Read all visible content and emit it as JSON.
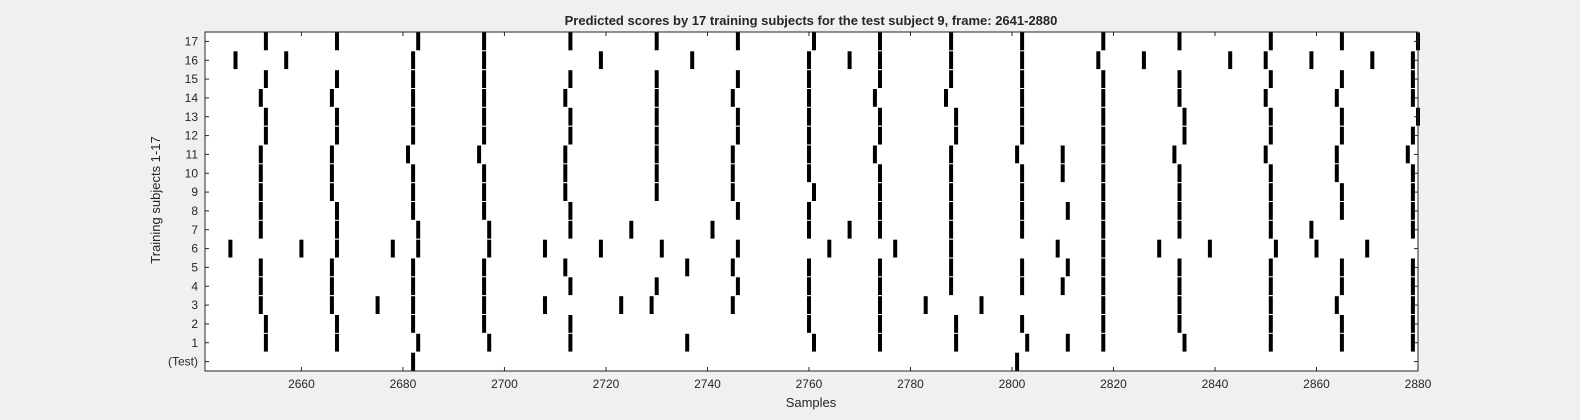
{
  "chart_data": {
    "type": "raster",
    "title": "Predicted scores by 17 training subjects for the test subject 9, frame: 2641-2880",
    "xlabel": "Samples",
    "ylabel": "Training subjects 1-17",
    "xlim": [
      2641,
      2880
    ],
    "xticks": [
      2660,
      2680,
      2700,
      2720,
      2740,
      2760,
      2780,
      2800,
      2820,
      2840,
      2860,
      2880
    ],
    "yticklabels": [
      "(Test)",
      "1",
      "2",
      "3",
      "4",
      "5",
      "6",
      "7",
      "8",
      "9",
      "10",
      "11",
      "12",
      "13",
      "14",
      "15",
      "16",
      "17"
    ],
    "grid": false,
    "mark_color": "#000000",
    "rows": [
      {
        "label": "(Test)",
        "x": [
          2682,
          2801
        ]
      },
      {
        "label": "1",
        "x": [
          2653,
          2667,
          2683,
          2697,
          2713,
          2736,
          2761,
          2774,
          2789,
          2803,
          2811,
          2818,
          2834,
          2851,
          2865,
          2879
        ]
      },
      {
        "label": "2",
        "x": [
          2653,
          2667,
          2682,
          2696,
          2713,
          2760,
          2774,
          2789,
          2802,
          2818,
          2833,
          2851,
          2865,
          2879
        ]
      },
      {
        "label": "3",
        "x": [
          2652,
          2666,
          2675,
          2682,
          2696,
          2708,
          2723,
          2729,
          2745,
          2760,
          2774,
          2783,
          2794,
          2818,
          2833,
          2851,
          2864,
          2879
        ]
      },
      {
        "label": "4",
        "x": [
          2652,
          2666,
          2682,
          2696,
          2713,
          2730,
          2746,
          2760,
          2774,
          2788,
          2802,
          2810,
          2818,
          2833,
          2851,
          2865,
          2879
        ]
      },
      {
        "label": "5",
        "x": [
          2652,
          2666,
          2682,
          2696,
          2712,
          2736,
          2745,
          2760,
          2774,
          2788,
          2802,
          2811,
          2818,
          2833,
          2851,
          2865,
          2879
        ]
      },
      {
        "label": "6",
        "x": [
          2646,
          2660,
          2667,
          2678,
          2683,
          2697,
          2708,
          2719,
          2731,
          2746,
          2764,
          2777,
          2788,
          2809,
          2818,
          2829,
          2839,
          2852,
          2860,
          2870
        ]
      },
      {
        "label": "7",
        "x": [
          2652,
          2667,
          2683,
          2697,
          2713,
          2725,
          2741,
          2760,
          2768,
          2774,
          2788,
          2802,
          2818,
          2833,
          2851,
          2859,
          2879
        ]
      },
      {
        "label": "8",
        "x": [
          2652,
          2667,
          2682,
          2696,
          2713,
          2746,
          2760,
          2774,
          2788,
          2802,
          2811,
          2818,
          2833,
          2851,
          2865,
          2879
        ]
      },
      {
        "label": "9",
        "x": [
          2652,
          2666,
          2682,
          2696,
          2712,
          2730,
          2745,
          2761,
          2774,
          2788,
          2802,
          2818,
          2833,
          2851,
          2865,
          2879
        ]
      },
      {
        "label": "10",
        "x": [
          2652,
          2666,
          2682,
          2696,
          2712,
          2730,
          2745,
          2760,
          2774,
          2788,
          2802,
          2810,
          2818,
          2833,
          2851,
          2864,
          2879
        ]
      },
      {
        "label": "11",
        "x": [
          2652,
          2666,
          2681,
          2695,
          2712,
          2730,
          2745,
          2760,
          2773,
          2788,
          2801,
          2810,
          2818,
          2832,
          2850,
          2864,
          2878
        ]
      },
      {
        "label": "12",
        "x": [
          2653,
          2667,
          2682,
          2696,
          2713,
          2730,
          2746,
          2760,
          2774,
          2789,
          2802,
          2818,
          2834,
          2851,
          2865,
          2879
        ]
      },
      {
        "label": "13",
        "x": [
          2653,
          2667,
          2682,
          2696,
          2713,
          2730,
          2746,
          2760,
          2774,
          2789,
          2802,
          2818,
          2834,
          2851,
          2865,
          2880
        ]
      },
      {
        "label": "14",
        "x": [
          2652,
          2666,
          2682,
          2696,
          2712,
          2730,
          2745,
          2760,
          2773,
          2787,
          2802,
          2818,
          2833,
          2850,
          2864,
          2879
        ]
      },
      {
        "label": "15",
        "x": [
          2653,
          2667,
          2682,
          2696,
          2713,
          2730,
          2746,
          2760,
          2774,
          2788,
          2802,
          2818,
          2833,
          2851,
          2865,
          2879
        ]
      },
      {
        "label": "16",
        "x": [
          2647,
          2657,
          2682,
          2696,
          2719,
          2737,
          2760,
          2768,
          2774,
          2788,
          2802,
          2817,
          2826,
          2843,
          2850,
          2859,
          2871,
          2879
        ]
      },
      {
        "label": "17",
        "x": [
          2653,
          2667,
          2683,
          2696,
          2713,
          2730,
          2746,
          2761,
          2774,
          2788,
          2802,
          2818,
          2833,
          2851,
          2865,
          2880
        ]
      }
    ]
  }
}
